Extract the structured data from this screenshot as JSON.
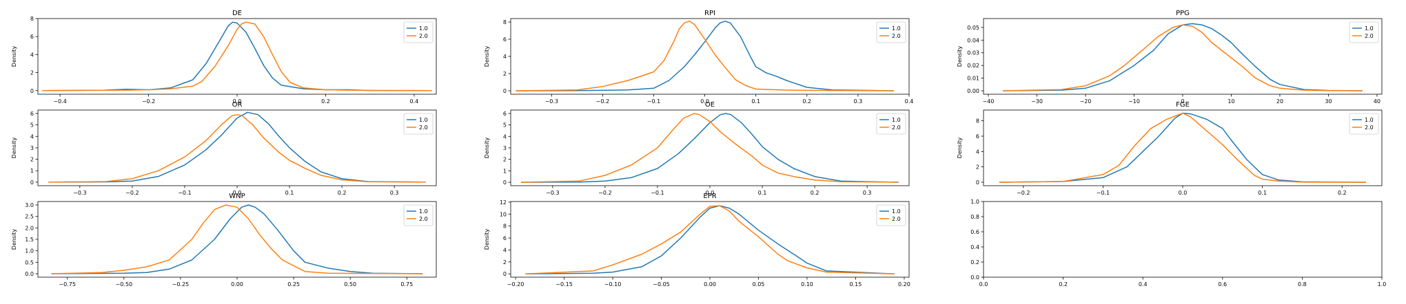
{
  "series_colors": {
    "s1": "#1f77b4",
    "s2": "#ff7f0e"
  },
  "chart_data": [
    {
      "type": "line",
      "title": "DE",
      "ylabel": "Density",
      "legend": "top-right",
      "xlim": [
        -0.45,
        0.45
      ],
      "ylim": [
        -0.4,
        8
      ],
      "xticks": [
        -0.4,
        -0.2,
        0.0,
        0.2,
        0.4
      ],
      "yticks": [
        0,
        2,
        4,
        6,
        8
      ],
      "xtick_labels": [
        "−0.4",
        "−0.2",
        "0.0",
        "0.2",
        "0.4"
      ],
      "ytick_labels": [
        "0",
        "2",
        "4",
        "6",
        "8"
      ],
      "series": [
        {
          "name": "1.0",
          "x": [
            -0.44,
            -0.3,
            -0.25,
            -0.2,
            -0.15,
            -0.1,
            -0.07,
            -0.04,
            -0.02,
            -0.01,
            0,
            0.02,
            0.04,
            0.06,
            0.08,
            0.1,
            0.15,
            0.2,
            0.25,
            0.3,
            0.44
          ],
          "y": [
            0,
            0.05,
            0.15,
            0.1,
            0.3,
            1.2,
            3,
            5.5,
            7.2,
            7.6,
            7.5,
            6.5,
            4.7,
            2.8,
            1.4,
            0.6,
            0.2,
            0.1,
            0.1,
            0.02,
            0
          ]
        },
        {
          "name": "2.0",
          "x": [
            -0.44,
            -0.25,
            -0.2,
            -0.15,
            -0.1,
            -0.08,
            -0.05,
            -0.02,
            0,
            0.01,
            0.02,
            0.04,
            0.06,
            0.08,
            0.1,
            0.12,
            0.15,
            0.2,
            0.25,
            0.3,
            0.44
          ],
          "y": [
            0,
            0.05,
            0.1,
            0.2,
            0.5,
            1,
            2.7,
            5,
            6.8,
            7.4,
            7.6,
            7.4,
            6,
            4,
            2.1,
            0.9,
            0.3,
            0.1,
            0.05,
            0.02,
            0
          ]
        }
      ]
    },
    {
      "type": "line",
      "title": "RPI",
      "ylabel": "Density",
      "legend": "top-right",
      "xlim": [
        -0.38,
        0.4
      ],
      "ylim": [
        -0.4,
        8.4
      ],
      "xticks": [
        -0.3,
        -0.2,
        -0.1,
        0.0,
        0.1,
        0.2,
        0.3,
        0.4
      ],
      "yticks": [
        0,
        2,
        4,
        6,
        8
      ],
      "xtick_labels": [
        "−0.3",
        "−0.2",
        "−0.1",
        "0.0",
        "0.1",
        "0.2",
        "0.3",
        "0.4"
      ],
      "ytick_labels": [
        "0",
        "2",
        "4",
        "6",
        "8"
      ],
      "series": [
        {
          "name": "1.0",
          "x": [
            -0.37,
            -0.25,
            -0.15,
            -0.1,
            -0.07,
            -0.04,
            -0.02,
            0,
            0.02,
            0.03,
            0.04,
            0.05,
            0.07,
            0.09,
            0.1,
            0.12,
            0.14,
            0.16,
            0.2,
            0.25,
            0.37
          ],
          "y": [
            0,
            0.02,
            0.1,
            0.3,
            1.2,
            2.8,
            4.2,
            5.7,
            7.3,
            7.9,
            8.1,
            7.9,
            6.3,
            3.9,
            2.8,
            2.1,
            1.7,
            1.2,
            0.4,
            0.1,
            0
          ]
        },
        {
          "name": "2.0",
          "x": [
            -0.37,
            -0.25,
            -0.2,
            -0.15,
            -0.13,
            -0.1,
            -0.08,
            -0.06,
            -0.05,
            -0.04,
            -0.03,
            -0.02,
            0,
            0.02,
            0.04,
            0.06,
            0.08,
            0.1,
            0.15,
            0.2,
            0.37
          ],
          "y": [
            0,
            0.1,
            0.5,
            1.2,
            1.6,
            2.2,
            3.5,
            5.8,
            7.2,
            7.9,
            8.1,
            7.7,
            6,
            4.2,
            2.7,
            1.3,
            0.6,
            0.2,
            0.1,
            0.05,
            0
          ]
        }
      ]
    },
    {
      "type": "line",
      "title": "PPG",
      "ylabel": "Density",
      "legend": "top-right",
      "xlim": [
        -41,
        41
      ],
      "ylim": [
        -0.0027,
        0.057
      ],
      "xticks": [
        -40,
        -30,
        -20,
        -10,
        0,
        10,
        20,
        30,
        40
      ],
      "yticks": [
        0,
        0.01,
        0.02,
        0.03,
        0.04,
        0.05
      ],
      "xtick_labels": [
        "−40",
        "−30",
        "−20",
        "−10",
        "0",
        "10",
        "20",
        "30",
        "40"
      ],
      "ytick_labels": [
        "0.00",
        "0.01",
        "0.02",
        "0.03",
        "0.04",
        "0.05"
      ],
      "series": [
        {
          "name": "1.0",
          "x": [
            -37,
            -25,
            -20,
            -15,
            -10,
            -6,
            -3,
            0,
            2,
            4,
            6,
            8,
            10,
            12,
            15,
            18,
            20,
            25,
            30,
            37
          ],
          "y": [
            0,
            0.0005,
            0.002,
            0.008,
            0.02,
            0.032,
            0.045,
            0.052,
            0.053,
            0.052,
            0.049,
            0.044,
            0.038,
            0.03,
            0.019,
            0.009,
            0.005,
            0.001,
            0.0003,
            0
          ]
        },
        {
          "name": "2.0",
          "x": [
            -37,
            -25,
            -20,
            -15,
            -12,
            -8,
            -5,
            -2,
            0,
            2,
            4,
            6,
            8,
            10,
            12,
            15,
            18,
            20,
            25,
            30,
            37
          ],
          "y": [
            0,
            0.001,
            0.004,
            0.012,
            0.02,
            0.033,
            0.043,
            0.05,
            0.052,
            0.051,
            0.046,
            0.038,
            0.032,
            0.026,
            0.02,
            0.01,
            0.004,
            0.002,
            0.0005,
            0.0001,
            0
          ]
        }
      ]
    },
    {
      "type": "line",
      "title": "OR",
      "ylabel": "Density",
      "legend": "top-right",
      "xlim": [
        -0.38,
        0.38
      ],
      "ylim": [
        -0.31,
        6.3
      ],
      "xticks": [
        -0.3,
        -0.2,
        -0.1,
        0.0,
        0.1,
        0.2,
        0.3
      ],
      "yticks": [
        0,
        1,
        2,
        3,
        4,
        5,
        6
      ],
      "xtick_labels": [
        "−0.3",
        "−0.2",
        "−0.1",
        "0.0",
        "0.1",
        "0.2",
        "0.3"
      ],
      "ytick_labels": [
        "0",
        "1",
        "2",
        "3",
        "4",
        "5",
        "6"
      ],
      "series": [
        {
          "name": "1.0",
          "x": [
            -0.36,
            -0.25,
            -0.2,
            -0.15,
            -0.1,
            -0.06,
            -0.03,
            0,
            0.02,
            0.04,
            0.06,
            0.08,
            0.1,
            0.13,
            0.16,
            0.2,
            0.25,
            0.36
          ],
          "y": [
            0,
            0.02,
            0.1,
            0.5,
            1.5,
            2.8,
            4.1,
            5.6,
            6.1,
            5.9,
            5.1,
            4,
            3,
            1.8,
            0.9,
            0.3,
            0.05,
            0
          ]
        },
        {
          "name": "2.0",
          "x": [
            -0.36,
            -0.25,
            -0.2,
            -0.15,
            -0.1,
            -0.06,
            -0.03,
            -0.01,
            0,
            0.01,
            0.03,
            0.05,
            0.08,
            0.1,
            0.13,
            0.16,
            0.2,
            0.25,
            0.36
          ],
          "y": [
            0,
            0.05,
            0.3,
            1,
            2.2,
            3.6,
            5,
            5.8,
            5.9,
            5.8,
            5,
            3.9,
            2.6,
            1.9,
            1.2,
            0.6,
            0.2,
            0.03,
            0
          ]
        }
      ]
    },
    {
      "type": "line",
      "title": "OE",
      "ylabel": "Density",
      "legend": "top-right",
      "xlim": [
        -0.38,
        0.38
      ],
      "ylim": [
        -0.3,
        6.3
      ],
      "xticks": [
        -0.3,
        -0.2,
        -0.1,
        0.0,
        0.1,
        0.2,
        0.3
      ],
      "yticks": [
        0,
        1,
        2,
        3,
        4,
        5,
        6
      ],
      "xtick_labels": [
        "−0.3",
        "−0.2",
        "−0.1",
        "0.0",
        "0.1",
        "0.2",
        "0.3"
      ],
      "ytick_labels": [
        "0",
        "1",
        "2",
        "3",
        "4",
        "5",
        "6"
      ],
      "series": [
        {
          "name": "1.0",
          "x": [
            -0.36,
            -0.25,
            -0.2,
            -0.15,
            -0.1,
            -0.06,
            -0.03,
            0,
            0.02,
            0.03,
            0.04,
            0.06,
            0.08,
            0.1,
            0.13,
            0.16,
            0.2,
            0.25,
            0.36
          ],
          "y": [
            0,
            0.02,
            0.1,
            0.4,
            1.2,
            2.5,
            3.8,
            5.2,
            5.9,
            6,
            5.9,
            5.2,
            4.2,
            3.1,
            2,
            1.2,
            0.5,
            0.1,
            0
          ]
        },
        {
          "name": "2.0",
          "x": [
            -0.36,
            -0.25,
            -0.2,
            -0.15,
            -0.1,
            -0.07,
            -0.05,
            -0.03,
            -0.02,
            0,
            0.02,
            0.05,
            0.08,
            0.1,
            0.13,
            0.16,
            0.2,
            0.25,
            0.36
          ],
          "y": [
            0,
            0.1,
            0.6,
            1.5,
            3,
            4.6,
            5.6,
            6,
            5.9,
            5.3,
            4.4,
            3.3,
            2.3,
            1.5,
            0.8,
            0.5,
            0.2,
            0.05,
            0
          ]
        }
      ]
    },
    {
      "type": "line",
      "title": "FGE",
      "ylabel": "Density",
      "legend": "top-right",
      "xlim": [
        -0.25,
        0.25
      ],
      "ylim": [
        -0.45,
        9.4
      ],
      "xticks": [
        -0.2,
        -0.1,
        0.0,
        0.1,
        0.2
      ],
      "yticks": [
        0,
        2,
        4,
        6,
        8
      ],
      "xtick_labels": [
        "−0.2",
        "−0.1",
        "0.0",
        "0.1",
        "0.2"
      ],
      "ytick_labels": [
        "0",
        "2",
        "4",
        "6",
        "8"
      ],
      "series": [
        {
          "name": "1.0",
          "x": [
            -0.23,
            -0.15,
            -0.1,
            -0.07,
            -0.05,
            -0.03,
            -0.01,
            0,
            0.01,
            0.03,
            0.05,
            0.06,
            0.08,
            0.1,
            0.12,
            0.15,
            0.23
          ],
          "y": [
            0,
            0.1,
            0.6,
            2,
            4,
            6,
            8.3,
            9,
            8.9,
            8.2,
            7,
            5.6,
            3,
            1,
            0.3,
            0.05,
            0
          ]
        },
        {
          "name": "2.0",
          "x": [
            -0.23,
            -0.15,
            -0.1,
            -0.08,
            -0.06,
            -0.04,
            -0.02,
            0,
            0.01,
            0.02,
            0.04,
            0.05,
            0.07,
            0.09,
            0.1,
            0.12,
            0.15,
            0.23
          ],
          "y": [
            0,
            0.1,
            1,
            2.2,
            4.8,
            7,
            8.2,
            9,
            8.5,
            7.6,
            5.8,
            4.9,
            2.8,
            0.9,
            0.4,
            0.15,
            0.02,
            0
          ]
        }
      ]
    },
    {
      "type": "line",
      "title": "WNP",
      "ylabel": "Density",
      "legend": "top-right",
      "xlim": [
        -0.88,
        0.88
      ],
      "ylim": [
        -0.15,
        3.15
      ],
      "xticks": [
        -0.75,
        -0.5,
        -0.25,
        0.0,
        0.25,
        0.5,
        0.75
      ],
      "yticks": [
        0,
        0.5,
        1.0,
        1.5,
        2.0,
        2.5,
        3.0
      ],
      "xtick_labels": [
        "−0.75",
        "−0.50",
        "−0.25",
        "0.00",
        "0.25",
        "0.50",
        "0.75"
      ],
      "ytick_labels": [
        "0.0",
        "0.5",
        "1.0",
        "1.5",
        "2.0",
        "2.5",
        "3.0"
      ],
      "series": [
        {
          "name": "1.0",
          "x": [
            -0.82,
            -0.5,
            -0.4,
            -0.3,
            -0.2,
            -0.1,
            -0.03,
            0.02,
            0.05,
            0.08,
            0.12,
            0.18,
            0.25,
            0.3,
            0.4,
            0.5,
            0.6,
            0.82
          ],
          "y": [
            0,
            0.02,
            0.05,
            0.2,
            0.6,
            1.5,
            2.4,
            2.9,
            3,
            2.9,
            2.6,
            1.9,
            1,
            0.5,
            0.25,
            0.1,
            0.02,
            0
          ]
        },
        {
          "name": "2.0",
          "x": [
            -0.82,
            -0.6,
            -0.5,
            -0.4,
            -0.3,
            -0.2,
            -0.15,
            -0.1,
            -0.05,
            0,
            0.05,
            0.1,
            0.15,
            0.2,
            0.3,
            0.4,
            0.82
          ],
          "y": [
            0,
            0.05,
            0.15,
            0.3,
            0.6,
            1.5,
            2.2,
            2.8,
            3,
            2.9,
            2.4,
            1.7,
            1.1,
            0.6,
            0.1,
            0.02,
            0
          ]
        }
      ]
    },
    {
      "type": "line",
      "title": "EPR",
      "ylabel": "Density",
      "legend": "top-right",
      "xlim": [
        -0.205,
        0.205
      ],
      "ylim": [
        -0.55,
        12.1
      ],
      "xticks": [
        -0.2,
        -0.15,
        -0.1,
        -0.05,
        0.0,
        0.05,
        0.1,
        0.15,
        0.2
      ],
      "yticks": [
        0,
        2,
        4,
        6,
        8,
        10,
        12
      ],
      "xtick_labels": [
        "−0.20",
        "−0.15",
        "−0.10",
        "−0.05",
        "0.00",
        "0.05",
        "0.10",
        "0.15",
        "0.20"
      ],
      "ytick_labels": [
        "0",
        "2",
        "4",
        "6",
        "8",
        "10",
        "12"
      ],
      "series": [
        {
          "name": "1.0",
          "x": [
            -0.19,
            -0.12,
            -0.1,
            -0.07,
            -0.05,
            -0.03,
            -0.01,
            0,
            0.01,
            0.02,
            0.03,
            0.05,
            0.07,
            0.09,
            0.1,
            0.12,
            0.19
          ],
          "y": [
            0,
            0.1,
            0.3,
            1.2,
            3,
            6,
            9.5,
            11,
            11.4,
            11,
            10,
            7.3,
            5,
            2.9,
            1.8,
            0.5,
            0
          ]
        },
        {
          "name": "2.0",
          "x": [
            -0.19,
            -0.12,
            -0.1,
            -0.07,
            -0.05,
            -0.03,
            -0.01,
            0,
            0.01,
            0.02,
            0.03,
            0.05,
            0.07,
            0.08,
            0.1,
            0.12,
            0.19
          ],
          "y": [
            0,
            0.5,
            1.5,
            3.3,
            5,
            7,
            10,
            11.3,
            11.4,
            10.5,
            8.8,
            6.2,
            3.3,
            2.2,
            1,
            0.3,
            0
          ]
        }
      ]
    },
    {
      "type": "line",
      "title": "",
      "ylabel": "",
      "legend": "",
      "xlim": [
        0,
        1
      ],
      "ylim": [
        0,
        1
      ],
      "xticks": [
        0,
        0.2,
        0.4,
        0.6,
        0.8,
        1.0
      ],
      "yticks": [
        0,
        0.2,
        0.4,
        0.6,
        0.8,
        1.0
      ],
      "xtick_labels": [
        "0.0",
        "0.2",
        "0.4",
        "0.6",
        "0.8",
        "1.0"
      ],
      "ytick_labels": [
        "0.0",
        "0.2",
        "0.4",
        "0.6",
        "0.8",
        "1.0"
      ],
      "series": []
    }
  ]
}
